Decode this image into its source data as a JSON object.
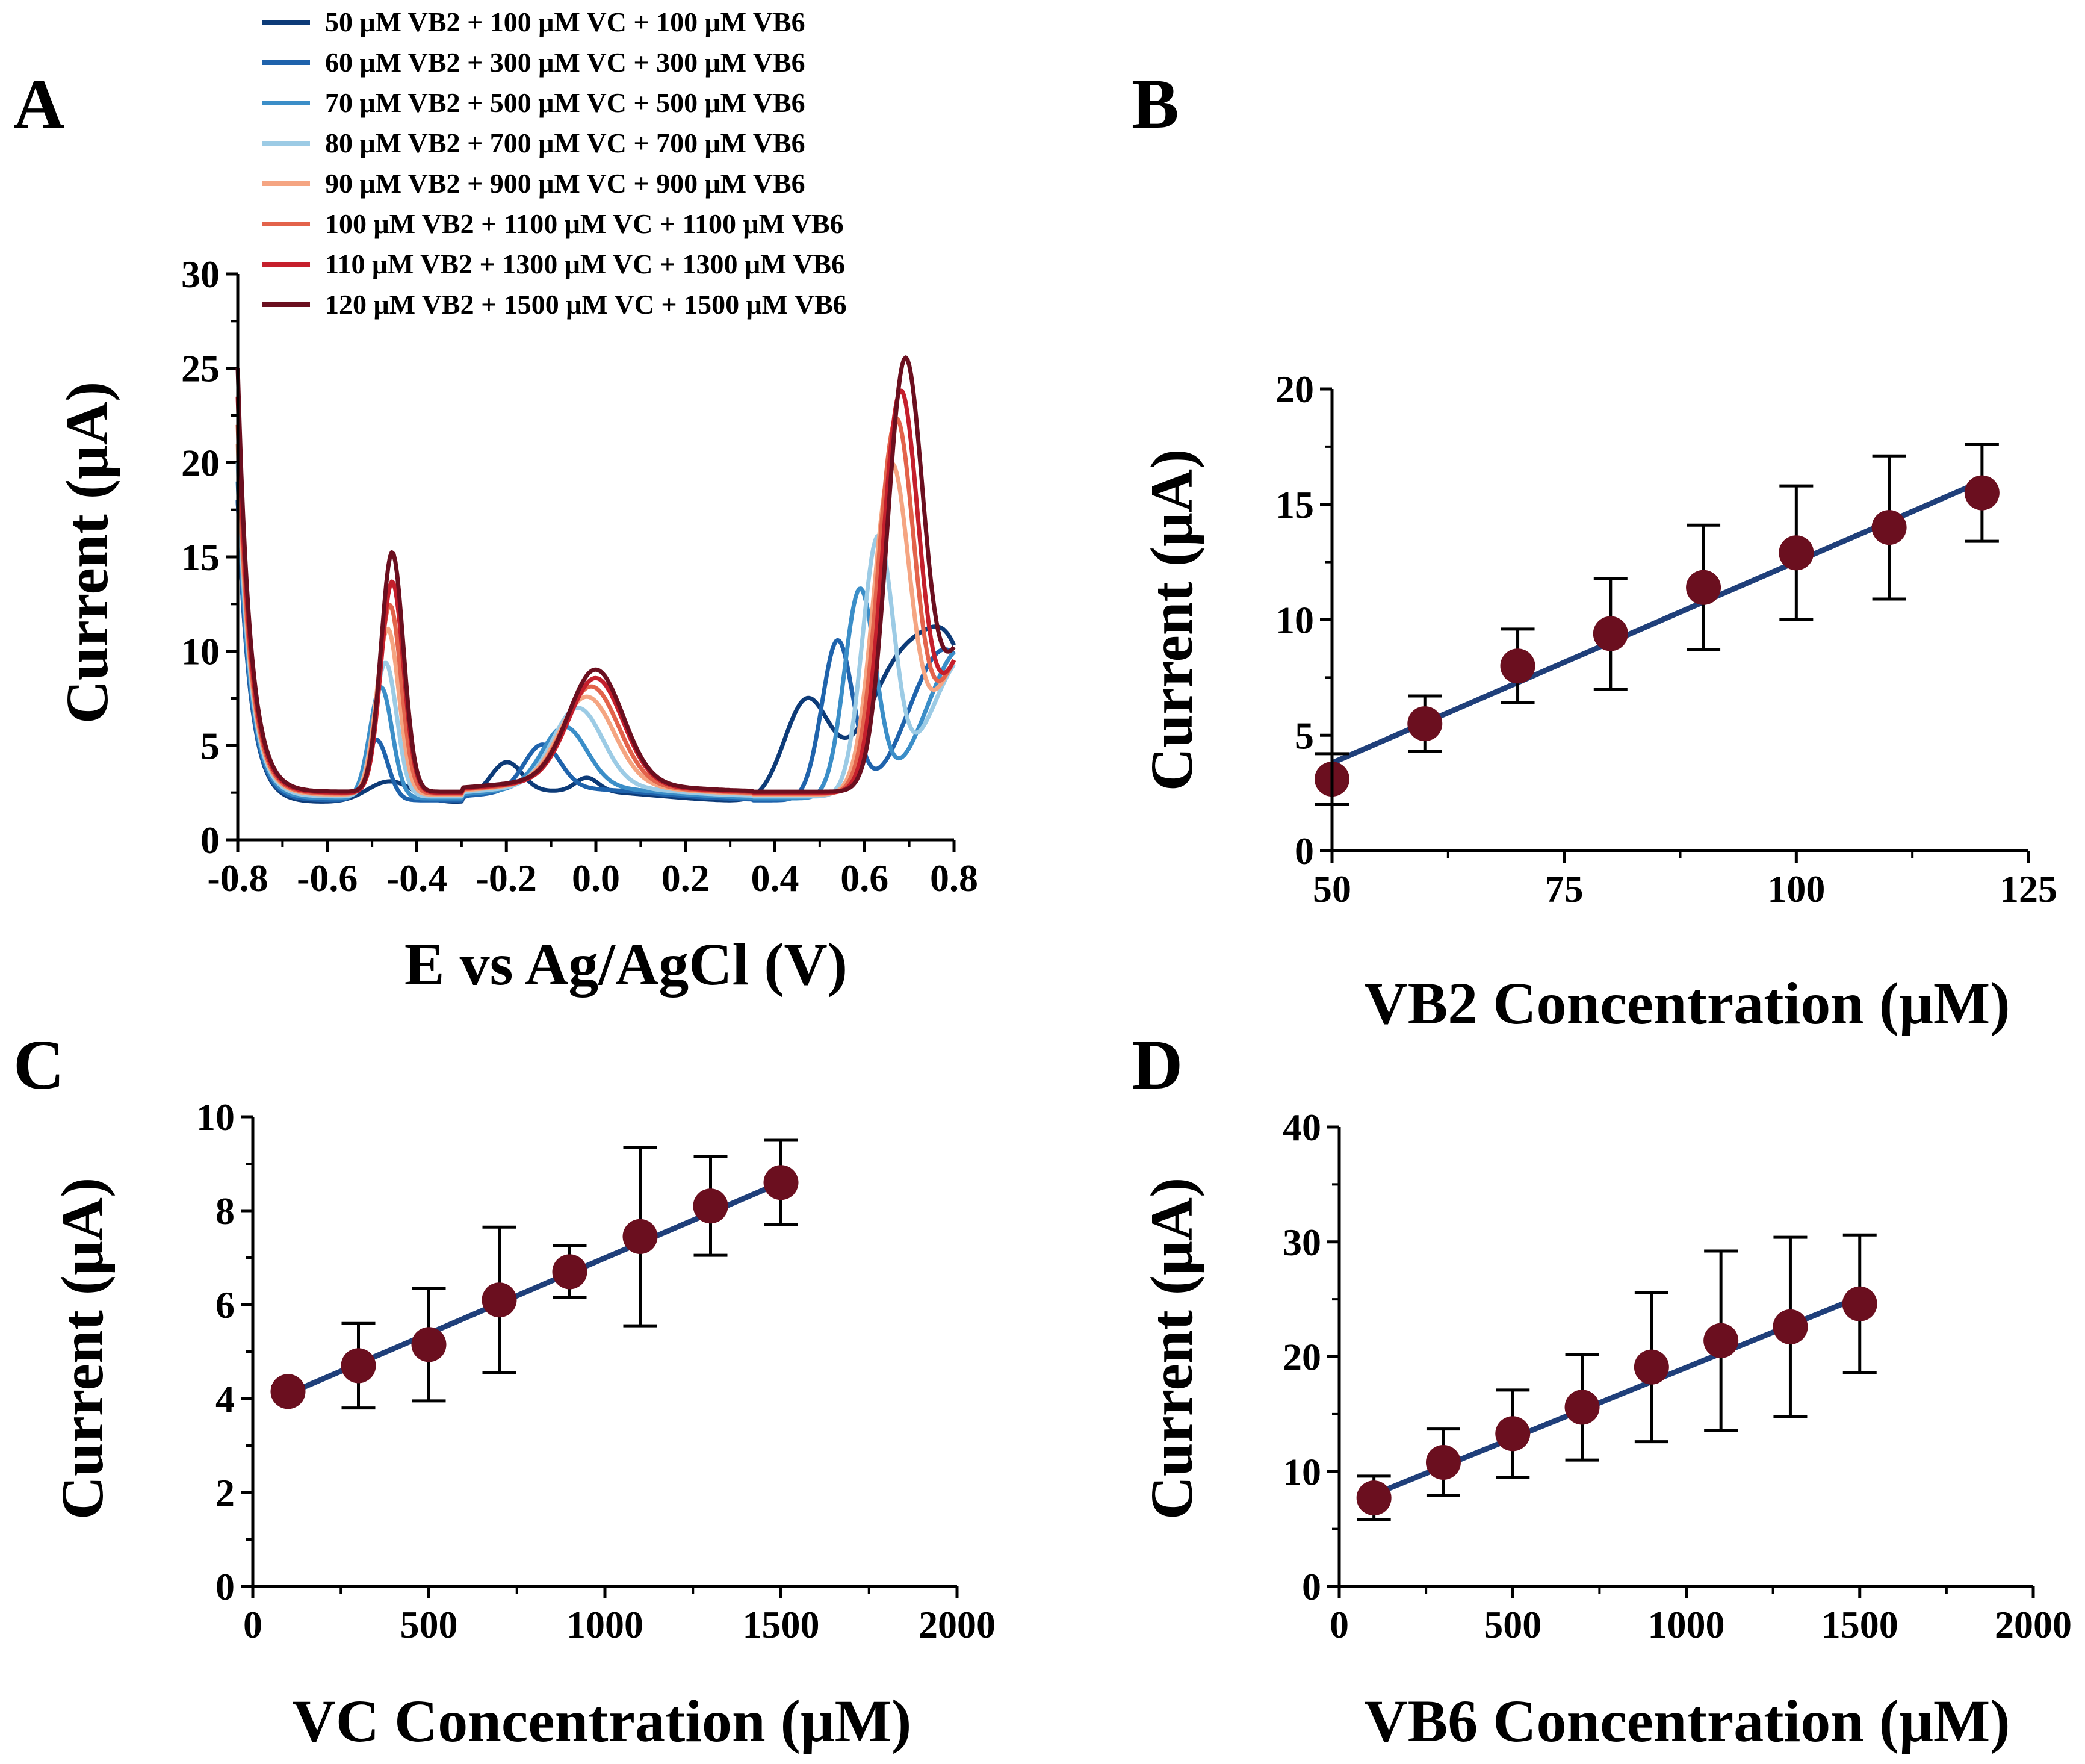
{
  "chart_data": [
    {
      "panel": "A",
      "type": "line",
      "xlabel": "E vs Ag/AgCl (V)",
      "ylabel": "Current (μA)",
      "xlim": [
        -0.8,
        0.8
      ],
      "ylim": [
        0,
        30
      ],
      "xticks": [
        -0.8,
        -0.6,
        -0.4,
        -0.2,
        0.0,
        0.2,
        0.4,
        0.6,
        0.8
      ],
      "xtick_labels": [
        "-0.8",
        "-0.6",
        "-0.4",
        "-0.2",
        "0.0",
        "0.2",
        "0.4",
        "0.6",
        "0.8"
      ],
      "yticks": [
        0,
        5,
        10,
        15,
        20,
        25,
        30
      ],
      "ytick_labels": [
        "0",
        "5",
        "10",
        "15",
        "20",
        "25",
        "30"
      ],
      "legend_position": "top",
      "series": [
        {
          "name": "50 μM VB2 + 100 μM VC + 100 μM VB6",
          "color": "#0d3b78",
          "start": 18.0,
          "base": 2.0,
          "peaks": [
            [
              -0.46,
              1.1,
              0.05
            ],
            [
              -0.2,
              1.7,
              0.035
            ],
            [
              -0.02,
              0.7,
              0.025
            ],
            [
              0.47,
              5.2,
              0.05
            ],
            [
              0.7,
              8.0,
              0.09
            ],
            [
              0.8,
              4.0,
              0.05
            ]
          ]
        },
        {
          "name": "60 μM VB2 + 300 μM VC + 300 μM VB6",
          "color": "#1f63ac",
          "start": 18.0,
          "base": 2.1,
          "peaks": [
            [
              -0.49,
              3.2,
              0.025
            ],
            [
              -0.12,
              2.4,
              0.04
            ],
            [
              0.54,
              8.4,
              0.035
            ],
            [
              0.78,
              8.0,
              0.08
            ]
          ]
        },
        {
          "name": "70 μM VB2 + 500 μM VC + 500 μM VB6",
          "color": "#3b8ec8",
          "start": 19.0,
          "base": 2.2,
          "peaks": [
            [
              -0.48,
              5.9,
              0.025
            ],
            [
              -0.07,
              3.2,
              0.05
            ],
            [
              0.59,
              11.0,
              0.035
            ],
            [
              0.82,
              8.0,
              0.08
            ]
          ]
        },
        {
          "name": "80 μM VB2 + 700 μM VC + 700 μM VB6",
          "color": "#9ccbe5",
          "start": 20.0,
          "base": 2.3,
          "peaks": [
            [
              -0.47,
              7.1,
              0.025
            ],
            [
              -0.04,
              4.1,
              0.055
            ],
            [
              0.63,
              13.5,
              0.035
            ],
            [
              0.83,
              7.5,
              0.08
            ]
          ]
        },
        {
          "name": "90 μM VB2 + 900 μM VC + 900 μM VB6",
          "color": "#f5a582",
          "start": 21.0,
          "base": 2.4,
          "peaks": [
            [
              -0.465,
              8.8,
              0.025
            ],
            [
              -0.02,
              4.6,
              0.06
            ],
            [
              0.66,
              16.9,
              0.04
            ],
            [
              0.84,
              8.0,
              0.08
            ]
          ]
        },
        {
          "name": "100 μM VB2 + 1100 μM VC + 1100 μM VB6",
          "color": "#e3634b",
          "start": 22.0,
          "base": 2.45,
          "peaks": [
            [
              -0.46,
              10.0,
              0.025
            ],
            [
              -0.01,
              5.1,
              0.06
            ],
            [
              0.67,
              19.2,
              0.04
            ],
            [
              0.85,
              8.5,
              0.08
            ]
          ]
        },
        {
          "name": "110 μM VB2 + 1300 μM VC + 1300 μM VB6",
          "color": "#c51f2c",
          "start": 23.5,
          "base": 2.5,
          "peaks": [
            [
              -0.455,
              11.2,
              0.025
            ],
            [
              0.0,
              5.5,
              0.06
            ],
            [
              0.68,
              20.6,
              0.04
            ],
            [
              0.86,
              9.0,
              0.08
            ]
          ]
        },
        {
          "name": "120 μM VB2 + 1500 μM VC + 1500 μM VB6",
          "color": "#6b0f1f",
          "start": 25.0,
          "base": 2.55,
          "peaks": [
            [
              -0.455,
              12.7,
              0.025
            ],
            [
              0.0,
              5.9,
              0.06
            ],
            [
              0.69,
              22.0,
              0.04
            ],
            [
              0.86,
              9.5,
              0.08
            ]
          ]
        }
      ]
    },
    {
      "panel": "B",
      "type": "scatter",
      "xlabel": "VB2 Concentration (μM)",
      "ylabel": "Current (μA)",
      "xlim": [
        50,
        125
      ],
      "ylim": [
        0,
        20
      ],
      "xticks": [
        50,
        75,
        100,
        125
      ],
      "xtick_labels": [
        "50",
        "75",
        "100",
        "125"
      ],
      "yticks": [
        0,
        5,
        10,
        15,
        20
      ],
      "ytick_labels": [
        "0",
        "5",
        "10",
        "15",
        "20"
      ],
      "x": [
        50,
        60,
        70,
        80,
        90,
        100,
        110,
        120
      ],
      "y": [
        3.1,
        5.5,
        8.0,
        9.4,
        11.4,
        12.9,
        14.0,
        15.5
      ],
      "err": [
        1.1,
        1.2,
        1.6,
        2.4,
        2.7,
        2.9,
        3.1,
        2.1
      ],
      "fit": {
        "x": [
          50,
          120
        ],
        "y": [
          3.8,
          16.0
        ]
      },
      "point_color": "#6b0f1f",
      "line_color": "#1f3f7a"
    },
    {
      "panel": "C",
      "type": "scatter",
      "xlabel": "VC Concentration (μM)",
      "ylabel": "Current (μA)",
      "xlim": [
        0,
        2000
      ],
      "ylim": [
        0,
        10
      ],
      "xticks": [
        0,
        500,
        1000,
        1500,
        2000
      ],
      "xtick_labels": [
        "0",
        "500",
        "1000",
        "1500",
        "2000"
      ],
      "yticks": [
        0,
        2,
        4,
        6,
        8,
        10
      ],
      "ytick_labels": [
        "0",
        "2",
        "4",
        "6",
        "8",
        "10"
      ],
      "x": [
        100,
        300,
        500,
        700,
        900,
        1100,
        1300,
        1500
      ],
      "y": [
        4.15,
        4.7,
        5.15,
        6.1,
        6.7,
        7.45,
        8.1,
        8.6
      ],
      "err": [
        0.1,
        0.9,
        1.2,
        1.55,
        0.55,
        1.9,
        1.05,
        0.9
      ],
      "fit": {
        "x": [
          100,
          1500
        ],
        "y": [
          4.1,
          8.6
        ]
      },
      "point_color": "#6b0f1f",
      "line_color": "#1f3f7a"
    },
    {
      "panel": "D",
      "type": "scatter",
      "xlabel": "VB6 Concentration (μM)",
      "ylabel": "Current (μA)",
      "xlim": [
        0,
        2000
      ],
      "ylim": [
        0,
        40
      ],
      "xticks": [
        0,
        500,
        1000,
        1500,
        2000
      ],
      "xtick_labels": [
        "0",
        "500",
        "1000",
        "1500",
        "2000"
      ],
      "yticks": [
        0,
        10,
        20,
        30,
        40
      ],
      "ytick_labels": [
        "0",
        "10",
        "20",
        "30",
        "40"
      ],
      "x": [
        100,
        300,
        500,
        700,
        900,
        1100,
        1300,
        1500
      ],
      "y": [
        7.7,
        10.8,
        13.3,
        15.6,
        19.1,
        21.4,
        22.6,
        24.6
      ],
      "err": [
        1.9,
        2.9,
        3.8,
        4.6,
        6.5,
        7.8,
        7.8,
        6.0
      ],
      "fit": {
        "x": [
          100,
          1500
        ],
        "y": [
          8.0,
          25.2
        ]
      },
      "point_color": "#6b0f1f",
      "line_color": "#1f3f7a"
    }
  ]
}
